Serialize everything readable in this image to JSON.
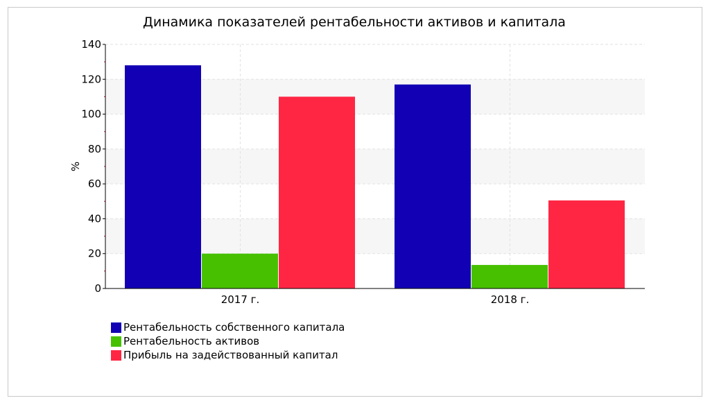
{
  "chart_data": {
    "type": "bar",
    "title": "Динамика показателей рентабельности активов и капитала",
    "xlabel": "",
    "ylabel": "%",
    "categories": [
      "2017 г.",
      "2018 г."
    ],
    "series": [
      {
        "name": "Рентабельность собственного капитала",
        "values": [
          128,
          117
        ],
        "color": "#1200b4"
      },
      {
        "name": "Рентабельность активов",
        "values": [
          20,
          13.5
        ],
        "color": "#47c000"
      },
      {
        "name": "Прибыль на задействованный капитал",
        "values": [
          110,
          50.5
        ],
        "color": "#ff2644"
      }
    ],
    "ylim": [
      0,
      140
    ],
    "yticks": [
      0,
      20,
      40,
      60,
      80,
      100,
      120,
      140
    ],
    "grid": true,
    "legend_position": "bottom-left"
  }
}
